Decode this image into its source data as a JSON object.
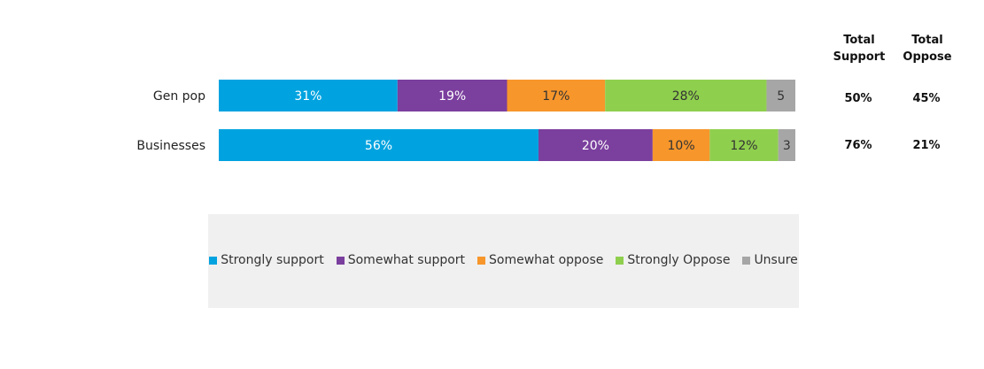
{
  "chart_data": {
    "type": "bar",
    "orientation": "horizontal",
    "stacked": true,
    "categories": [
      "Gen pop",
      "Businesses"
    ],
    "series": [
      {
        "name": "Strongly support",
        "values": [
          31,
          56
        ],
        "labels": [
          "31%",
          "56%"
        ],
        "color": "#00a3e0"
      },
      {
        "name": "Somewhat support",
        "values": [
          19,
          20
        ],
        "labels": [
          "19%",
          "20%"
        ],
        "color": "#7b3f9e"
      },
      {
        "name": "Somewhat oppose",
        "values": [
          17,
          10
        ],
        "labels": [
          "17%",
          "10%"
        ],
        "color": "#f7962b"
      },
      {
        "name": "Strongly Oppose",
        "values": [
          28,
          12
        ],
        "labels": [
          "28%",
          "12%"
        ],
        "color": "#8fcf4e"
      },
      {
        "name": "Unsure",
        "values": [
          5,
          3
        ],
        "labels": [
          "5",
          "3"
        ],
        "color": "#a6a6a6"
      }
    ],
    "totals_headers": {
      "support": "Total Support",
      "oppose": "Total Oppose"
    },
    "totals": [
      {
        "support": "50%",
        "oppose": "45%"
      },
      {
        "support": "76%",
        "oppose": "21%"
      }
    ],
    "legend_position": "bottom",
    "grid": false
  }
}
